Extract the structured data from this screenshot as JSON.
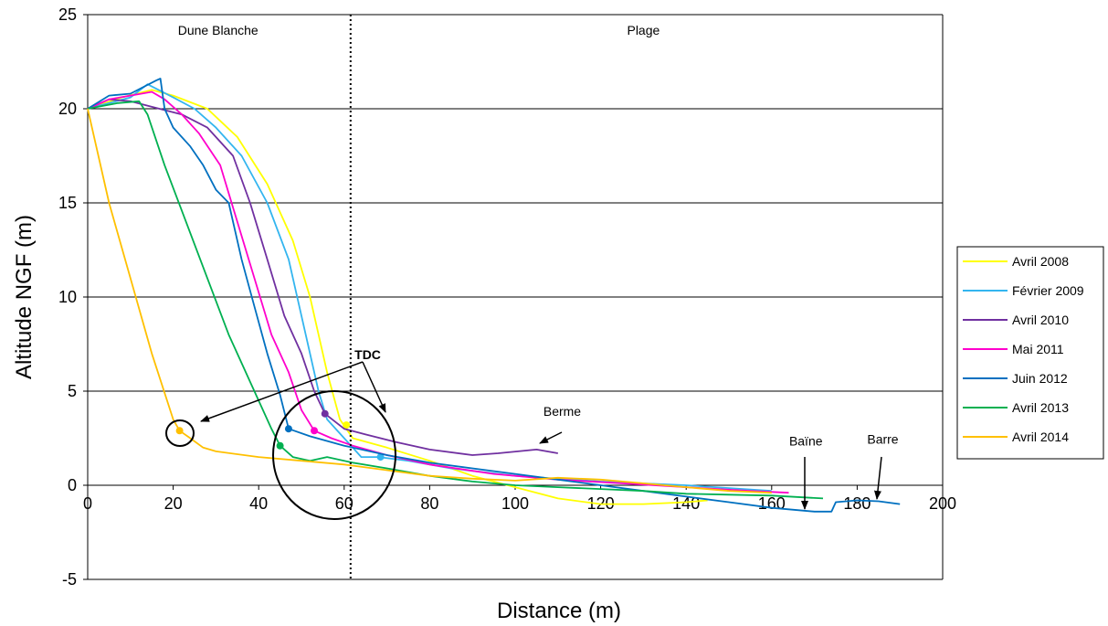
{
  "chart_data": {
    "type": "line",
    "xlabel": "Distance (m)",
    "ylabel": "Altitude NGF (m)",
    "xlim": [
      0,
      200
    ],
    "ylim": [
      -5,
      25
    ],
    "x_ticks": [
      0,
      20,
      40,
      60,
      80,
      100,
      120,
      140,
      160,
      180,
      200
    ],
    "y_ticks": [
      -5,
      0,
      5,
      10,
      15,
      20,
      25
    ],
    "grid": "horizontal",
    "legend_position": "right",
    "zone_divider_x": 61.5,
    "zones": [
      {
        "label": "Dune Blanche",
        "x": 30.5
      },
      {
        "label": "Plage",
        "x": 130
      }
    ],
    "series": [
      {
        "name": "Avril 2008",
        "color": "#ffff00",
        "points": [
          [
            0,
            20
          ],
          [
            8,
            20.6
          ],
          [
            15,
            21
          ],
          [
            20,
            20.7
          ],
          [
            28,
            20
          ],
          [
            35,
            18.5
          ],
          [
            42,
            16
          ],
          [
            48,
            13
          ],
          [
            52,
            10
          ],
          [
            56,
            6
          ],
          [
            59,
            3.5
          ],
          [
            62,
            2.5
          ],
          [
            70,
            2
          ],
          [
            80,
            1.3
          ],
          [
            90,
            0.5
          ],
          [
            100,
            -0.1
          ],
          [
            110,
            -0.7
          ],
          [
            120,
            -1
          ],
          [
            130,
            -1
          ],
          [
            140,
            -0.9
          ],
          [
            145,
            -0.8
          ]
        ],
        "tdc": [
          60.5,
          3.2
        ]
      },
      {
        "name": "Février 2009",
        "color": "#33b5ef",
        "points": [
          [
            0,
            20
          ],
          [
            5,
            20.3
          ],
          [
            10,
            20.6
          ],
          [
            14,
            21.3
          ],
          [
            20,
            20.6
          ],
          [
            25,
            20
          ],
          [
            30,
            19
          ],
          [
            36,
            17.5
          ],
          [
            42,
            15
          ],
          [
            47,
            12
          ],
          [
            51,
            8
          ],
          [
            54,
            5
          ],
          [
            56,
            3.5
          ],
          [
            60,
            2.5
          ],
          [
            62,
            2
          ],
          [
            64,
            1.5
          ],
          [
            68,
            1.5
          ],
          [
            75,
            1.3
          ],
          [
            85,
            0.9
          ],
          [
            100,
            0.5
          ],
          [
            120,
            0.2
          ],
          [
            140,
            0
          ],
          [
            160,
            -0.3
          ]
        ],
        "tdc": [
          68.5,
          1.5
        ]
      },
      {
        "name": "Avril 2010",
        "color": "#7030a0",
        "points": [
          [
            0,
            20
          ],
          [
            5,
            20.5
          ],
          [
            10,
            20.4
          ],
          [
            15,
            20.1
          ],
          [
            22,
            19.7
          ],
          [
            28,
            19
          ],
          [
            34,
            17.5
          ],
          [
            38,
            15
          ],
          [
            42,
            12
          ],
          [
            46,
            9
          ],
          [
            50,
            7
          ],
          [
            53,
            5
          ],
          [
            55.5,
            3.8
          ],
          [
            60,
            3
          ],
          [
            65,
            2.7
          ],
          [
            72,
            2.3
          ],
          [
            80,
            1.9
          ],
          [
            90,
            1.6
          ],
          [
            96,
            1.7
          ],
          [
            105,
            1.9
          ],
          [
            110,
            1.7
          ]
        ],
        "tdc": [
          55.5,
          3.8
        ]
      },
      {
        "name": "Mai 2011",
        "color": "#ff00cc",
        "points": [
          [
            0,
            20
          ],
          [
            5,
            20.5
          ],
          [
            10,
            20.7
          ],
          [
            15,
            20.9
          ],
          [
            18,
            20.5
          ],
          [
            22,
            19.7
          ],
          [
            26,
            18.7
          ],
          [
            31,
            17
          ],
          [
            35,
            14
          ],
          [
            39,
            11
          ],
          [
            43,
            8
          ],
          [
            47,
            6
          ],
          [
            50,
            4
          ],
          [
            53,
            2.9
          ],
          [
            57,
            2.5
          ],
          [
            62,
            2.1
          ],
          [
            70,
            1.6
          ],
          [
            80,
            1.1
          ],
          [
            95,
            0.6
          ],
          [
            110,
            0.3
          ],
          [
            125,
            0.1
          ],
          [
            140,
            -0.1
          ],
          [
            155,
            -0.3
          ],
          [
            164,
            -0.4
          ]
        ],
        "tdc": [
          53,
          2.9
        ]
      },
      {
        "name": "Juin 2012",
        "color": "#0070c0",
        "points": [
          [
            0,
            20
          ],
          [
            5,
            20.7
          ],
          [
            10,
            20.8
          ],
          [
            16,
            21.5
          ],
          [
            17,
            21.6
          ],
          [
            18,
            20
          ],
          [
            20,
            19
          ],
          [
            24,
            18
          ],
          [
            27,
            17
          ],
          [
            30,
            15.7
          ],
          [
            33,
            15
          ],
          [
            36,
            12
          ],
          [
            39,
            9.5
          ],
          [
            42,
            7
          ],
          [
            45,
            4.8
          ],
          [
            47,
            3
          ],
          [
            52,
            2.6
          ],
          [
            60,
            2.1
          ],
          [
            70,
            1.6
          ],
          [
            80,
            1.2
          ],
          [
            90,
            0.9
          ],
          [
            100,
            0.6
          ],
          [
            110,
            0.3
          ],
          [
            120,
            0
          ],
          [
            130,
            -0.3
          ],
          [
            140,
            -0.6
          ],
          [
            150,
            -0.9
          ],
          [
            160,
            -1.2
          ],
          [
            170,
            -1.4
          ],
          [
            174,
            -1.4
          ],
          [
            175,
            -0.9
          ],
          [
            180,
            -0.8
          ],
          [
            185,
            -0.85
          ],
          [
            190,
            -1
          ]
        ],
        "tdc": [
          47,
          3
        ]
      },
      {
        "name": "Avril 2013",
        "color": "#00b050",
        "points": [
          [
            0,
            20
          ],
          [
            7,
            20.3
          ],
          [
            12,
            20.4
          ],
          [
            14,
            19.7
          ],
          [
            18,
            17
          ],
          [
            23,
            14
          ],
          [
            28,
            11
          ],
          [
            33,
            8
          ],
          [
            38,
            5.5
          ],
          [
            43,
            3
          ],
          [
            45,
            2.1
          ],
          [
            48,
            1.5
          ],
          [
            52,
            1.3
          ],
          [
            56,
            1.5
          ],
          [
            62,
            1.2
          ],
          [
            70,
            0.9
          ],
          [
            80,
            0.5
          ],
          [
            90,
            0.2
          ],
          [
            100,
            0
          ],
          [
            110,
            -0.1
          ],
          [
            120,
            -0.2
          ],
          [
            130,
            -0.3
          ],
          [
            140,
            -0.45
          ],
          [
            150,
            -0.5
          ],
          [
            160,
            -0.55
          ],
          [
            172,
            -0.7
          ]
        ],
        "tdc": [
          45,
          2.1
        ]
      },
      {
        "name": "Avril 2014",
        "color": "#ffc000",
        "points": [
          [
            0,
            20
          ],
          [
            5,
            15
          ],
          [
            10,
            11
          ],
          [
            15,
            7
          ],
          [
            20,
            3.5
          ],
          [
            21.5,
            2.9
          ],
          [
            24,
            2.5
          ],
          [
            27,
            2
          ],
          [
            30,
            1.8
          ],
          [
            40,
            1.5
          ],
          [
            50,
            1.3
          ],
          [
            60,
            1.1
          ],
          [
            70,
            0.8
          ],
          [
            80,
            0.5
          ],
          [
            90,
            0.35
          ],
          [
            100,
            0.25
          ],
          [
            110,
            0.4
          ],
          [
            120,
            0.3
          ],
          [
            130,
            0.1
          ],
          [
            140,
            -0.1
          ],
          [
            150,
            -0.3
          ],
          [
            160,
            -0.4
          ]
        ],
        "tdc": [
          21.5,
          2.9
        ]
      }
    ],
    "annotations": [
      {
        "label": "TDC",
        "x": 65.5,
        "y": 6.7,
        "bold": true
      },
      {
        "label": "Berme",
        "x": 111,
        "y": 3.7
      },
      {
        "label": "Baïne",
        "x": 168,
        "y": 2.1
      },
      {
        "label": "Barre",
        "x": 186,
        "y": 2.2
      }
    ]
  }
}
